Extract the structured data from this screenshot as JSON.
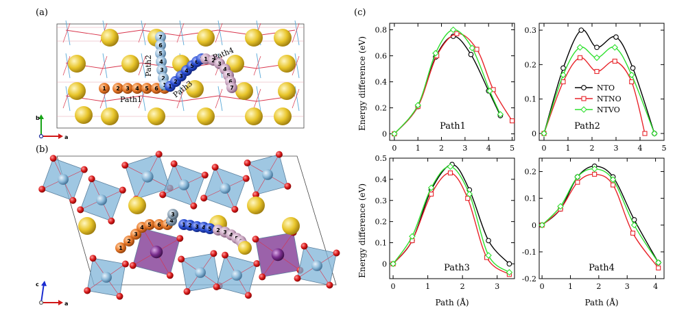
{
  "panel_labels": {
    "a": "(a)",
    "b": "(b)",
    "c": "(c)"
  },
  "structure_a": {
    "path_labels": [
      "Path1",
      "Path2",
      "Path3",
      "Path4"
    ],
    "path1_numbers": [
      "1",
      "2",
      "3",
      "4",
      "5",
      "6",
      "11"
    ],
    "path2_numbers": [
      "7",
      "6",
      "5",
      "4",
      "3",
      "2",
      "1"
    ],
    "path3_numbers": [
      "1",
      "2",
      "3",
      "4",
      "5",
      "6",
      "7"
    ],
    "path4_numbers": [
      "1",
      "2",
      "3",
      "4",
      "5",
      "6",
      "7"
    ],
    "axes": {
      "b": "b",
      "a": "a"
    }
  },
  "structure_b": {
    "numbers_orange": [
      "1",
      "2",
      "3",
      "4",
      "5",
      "6",
      "7"
    ],
    "numbers_blue": [
      "1",
      "2",
      "3",
      "4",
      "5"
    ],
    "numbers_grey": [
      "4",
      "3"
    ],
    "numbers_pink": [
      "2",
      "3",
      "4",
      "5",
      "6",
      "7"
    ],
    "axes": {
      "c": "c",
      "a": "a"
    }
  },
  "colors": {
    "NTO": "#000000",
    "NTNO": "#e8242a",
    "NTVO": "#2ee02e",
    "sodium": "#e8c52b",
    "oxygen": "#d81818",
    "octahedron": "#7fb4d8",
    "purple_octa": "#7a2e8e",
    "path_orange": "#e8792a",
    "path_blue": "#2b4fd0",
    "path_lightblue": "#9bbfdd",
    "path_pink": "#c9a6c1"
  },
  "legend": [
    "NTO",
    "NTNO",
    "NTVO"
  ],
  "ylabel": "Energy difference (eV)",
  "xlabel": "Path (Å)",
  "chart_data": [
    {
      "type": "line",
      "title": "Path1",
      "xlim": [
        -0.2,
        5.1
      ],
      "ylim": [
        -0.05,
        0.85
      ],
      "xticks": [
        0,
        1,
        2,
        3,
        4,
        5
      ],
      "yticks": [
        0,
        0.2,
        0.4,
        0.6,
        0.8
      ],
      "ytick_labels": [
        "0",
        "0.2",
        "0.4",
        "0.6",
        "0.8"
      ],
      "series": [
        {
          "name": "NTO",
          "x": [
            0,
            1.0,
            1.75,
            2.5,
            3.25,
            4.0,
            4.5
          ],
          "y": [
            0,
            0.21,
            0.59,
            0.75,
            0.61,
            0.33,
            0.14
          ]
        },
        {
          "name": "NTNO",
          "x": [
            0,
            1.0,
            1.8,
            2.65,
            3.5,
            4.2,
            5.0
          ],
          "y": [
            0,
            0.21,
            0.6,
            0.77,
            0.65,
            0.34,
            0.1
          ]
        },
        {
          "name": "NTVO",
          "x": [
            0,
            1.0,
            1.75,
            2.5,
            3.3,
            4.05,
            4.5
          ],
          "y": [
            0,
            0.22,
            0.62,
            0.8,
            0.66,
            0.33,
            0.15
          ]
        }
      ]
    },
    {
      "type": "line",
      "title": "Path2",
      "xlim": [
        -0.2,
        5.0
      ],
      "ylim": [
        -0.02,
        0.32
      ],
      "xticks": [
        0,
        1,
        2,
        3,
        4,
        5
      ],
      "yticks": [
        0,
        0.1,
        0.2,
        0.3
      ],
      "ytick_labels": [
        "0",
        "0.1",
        "0.2",
        "0.3"
      ],
      "series": [
        {
          "name": "NTO",
          "x": [
            0,
            0.8,
            1.55,
            2.2,
            3.0,
            3.7,
            4.6
          ],
          "y": [
            0,
            0.19,
            0.3,
            0.25,
            0.28,
            0.19,
            0
          ]
        },
        {
          "name": "NTNO",
          "x": [
            0,
            0.8,
            1.5,
            2.2,
            2.95,
            3.65,
            4.2
          ],
          "y": [
            0,
            0.15,
            0.22,
            0.18,
            0.21,
            0.15,
            0
          ]
        },
        {
          "name": "NTVO",
          "x": [
            0,
            0.8,
            1.5,
            2.2,
            2.95,
            3.65,
            4.6
          ],
          "y": [
            0,
            0.17,
            0.25,
            0.22,
            0.25,
            0.17,
            0
          ]
        }
      ]
    },
    {
      "type": "line",
      "title": "Path3",
      "xlim": [
        -0.1,
        3.5
      ],
      "ylim": [
        -0.07,
        0.5
      ],
      "xticks": [
        0,
        1,
        2,
        3
      ],
      "yticks": [
        0,
        0.1,
        0.2,
        0.3,
        0.4,
        0.5
      ],
      "ytick_labels": [
        "0",
        "0.1",
        "0.2",
        "0.3",
        "0.4",
        "0.5"
      ],
      "series": [
        {
          "name": "NTO",
          "x": [
            0,
            0.55,
            1.1,
            1.7,
            2.2,
            2.75,
            3.35
          ],
          "y": [
            0,
            0.11,
            0.35,
            0.47,
            0.35,
            0.11,
            0
          ]
        },
        {
          "name": "NTNO",
          "x": [
            0,
            0.55,
            1.1,
            1.65,
            2.15,
            2.7,
            3.35
          ],
          "y": [
            0,
            0.11,
            0.33,
            0.43,
            0.31,
            0.03,
            -0.05
          ]
        },
        {
          "name": "NTVO",
          "x": [
            0,
            0.55,
            1.1,
            1.65,
            2.2,
            2.75,
            3.35
          ],
          "y": [
            0,
            0.13,
            0.36,
            0.46,
            0.33,
            0.04,
            -0.04
          ]
        }
      ]
    },
    {
      "type": "line",
      "title": "Path4",
      "xlim": [
        -0.1,
        4.3
      ],
      "ylim": [
        -0.2,
        0.25
      ],
      "xticks": [
        0,
        1,
        2,
        3,
        4
      ],
      "yticks": [
        -0.2,
        -0.1,
        0,
        0.1,
        0.2
      ],
      "ytick_labels": [
        "-0.2",
        "-0.1",
        "0",
        "0.1",
        "0.2"
      ],
      "series": [
        {
          "name": "NTO",
          "x": [
            0,
            0.65,
            1.25,
            1.85,
            2.5,
            3.25,
            4.1
          ],
          "y": [
            0,
            0.06,
            0.18,
            0.22,
            0.18,
            0.02,
            -0.14
          ]
        },
        {
          "name": "NTNO",
          "x": [
            0,
            0.65,
            1.25,
            1.85,
            2.5,
            3.2,
            4.1
          ],
          "y": [
            0,
            0.06,
            0.16,
            0.19,
            0.15,
            -0.03,
            -0.16
          ]
        },
        {
          "name": "NTVO",
          "x": [
            0,
            0.65,
            1.25,
            1.85,
            2.5,
            3.25,
            4.1
          ],
          "y": [
            0,
            0.07,
            0.18,
            0.21,
            0.17,
            0,
            -0.14
          ]
        }
      ]
    }
  ]
}
